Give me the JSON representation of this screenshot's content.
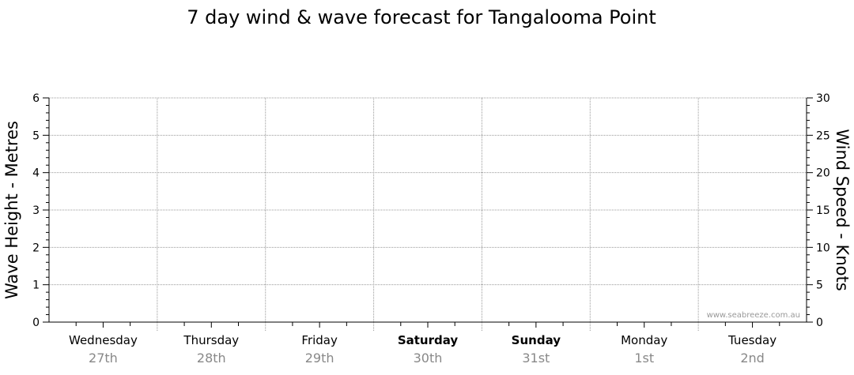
{
  "chart_data": {
    "type": "line",
    "title": "7 day wind & wave forecast for Tangalooma Point",
    "ylabel_left": "Wave Height - Metres",
    "ylabel_right": "Wind Speed - Knots",
    "ylim_left": [
      0,
      6
    ],
    "ylim_right": [
      0,
      30
    ],
    "yticks_left": [
      "0",
      "1",
      "2",
      "3",
      "4",
      "5",
      "6"
    ],
    "yticks_right": [
      "0",
      "5",
      "10",
      "15",
      "20",
      "25",
      "30"
    ],
    "grid": true,
    "days": [
      {
        "name": "Wednesday",
        "date": "27th",
        "bold": false
      },
      {
        "name": "Thursday",
        "date": "28th",
        "bold": false
      },
      {
        "name": "Friday",
        "date": "29th",
        "bold": false
      },
      {
        "name": "Saturday",
        "date": "30th",
        "bold": true
      },
      {
        "name": "Sunday",
        "date": "31st",
        "bold": true
      },
      {
        "name": "Monday",
        "date": "1st",
        "bold": false
      },
      {
        "name": "Tuesday",
        "date": "2nd",
        "bold": false
      }
    ],
    "series": [],
    "watermark": "www.seabreeze.com.au"
  }
}
